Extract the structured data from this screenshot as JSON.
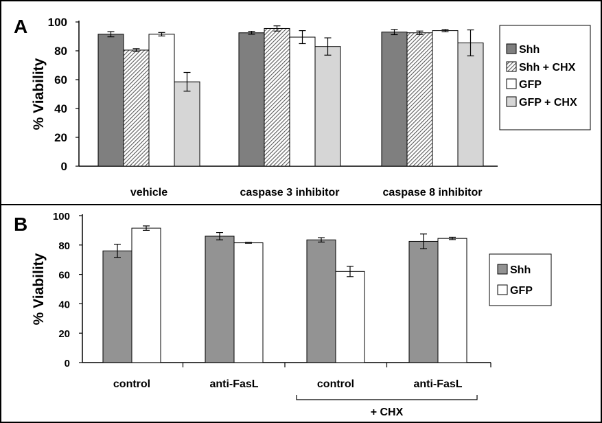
{
  "chart_data": [
    {
      "panel_label": "A",
      "type": "bar",
      "ylabel": "% Viability",
      "xlabel": "",
      "ylim": [
        0,
        100
      ],
      "yticks": [
        "0",
        "20",
        "40",
        "60",
        "80",
        "100"
      ],
      "categories": [
        "vehicle",
        "caspase 3 inhibitor",
        "caspase 8 inhibitor"
      ],
      "series": [
        {
          "name": "Shh",
          "values": [
            91.5,
            92.5,
            93
          ],
          "errors": [
            1.8,
            1,
            1.8
          ],
          "fill": "#7f7f7f",
          "pattern": "solid"
        },
        {
          "name": "Shh + CHX",
          "values": [
            80.5,
            95.5,
            92.5
          ],
          "errors": [
            1,
            1.8,
            1.2
          ],
          "fill": "#b5b5b5",
          "pattern": "hatch"
        },
        {
          "name": "GFP",
          "values": [
            91.5,
            89.5,
            94
          ],
          "errors": [
            1.2,
            4.5,
            0.8
          ],
          "fill": "#ffffff",
          "pattern": "solid"
        },
        {
          "name": "GFP + CHX",
          "values": [
            58.5,
            83,
            85.5
          ],
          "errors": [
            6.5,
            6,
            9
          ],
          "fill": "#d6d6d6",
          "pattern": "solid"
        }
      ],
      "legend_position": "right"
    },
    {
      "panel_label": "B",
      "type": "bar",
      "ylabel": "% Viability",
      "xlabel": "",
      "ylim": [
        0,
        100
      ],
      "yticks": [
        "0",
        "20",
        "40",
        "60",
        "80",
        "100"
      ],
      "categories": [
        "control",
        "anti-FasL",
        "control",
        "anti-FasL"
      ],
      "group_bracket": {
        "label": "+ CHX",
        "spans_categories": [
          2,
          3
        ]
      },
      "series": [
        {
          "name": "Shh",
          "values": [
            76,
            86,
            83.5,
            82.5
          ],
          "errors": [
            4.5,
            2.5,
            1.5,
            5
          ],
          "fill": "#939393",
          "pattern": "solid"
        },
        {
          "name": "GFP",
          "values": [
            91.5,
            81.5,
            62,
            84.5
          ],
          "errors": [
            1.5,
            0.3,
            3.5,
            0.8
          ],
          "fill": "#ffffff",
          "pattern": "solid"
        }
      ],
      "legend_position": "right"
    }
  ]
}
